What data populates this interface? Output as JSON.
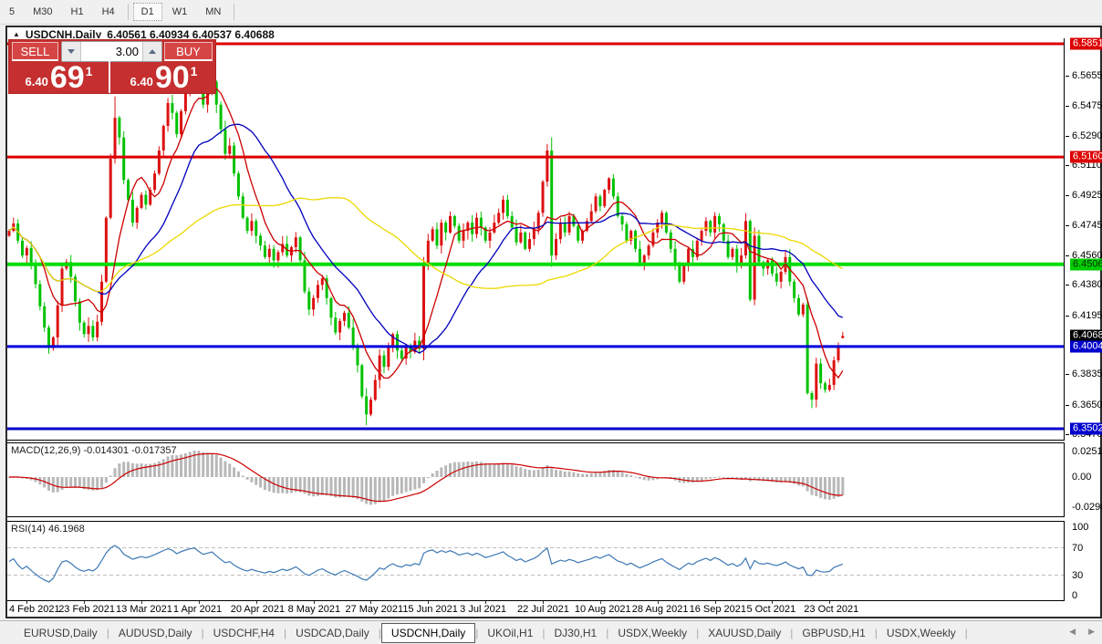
{
  "toolbar": {
    "timeframes": [
      "5",
      "M30",
      "H1",
      "H4",
      "D1",
      "W1",
      "MN"
    ],
    "active_timeframe": "D1"
  },
  "chart": {
    "symbol_title": "USDCNH,Daily",
    "ohlc_text": "6.40561 6.40934 6.40537 6.40688",
    "open": "6.40561",
    "high": "6.40934",
    "low": "6.40537",
    "close": "6.40688"
  },
  "trade_panel": {
    "sell_label": "SELL",
    "buy_label": "BUY",
    "volume": "3.00",
    "sell_price_small": "6.40",
    "sell_price_big": "69",
    "sell_price_sup": "1",
    "buy_price_small": "6.40",
    "buy_price_big": "90",
    "buy_price_sup": "1"
  },
  "indicators": {
    "macd_label": "MACD(12,26,9) -0.014301 -0.017357",
    "rsi_label": "RSI(14) 46.1968"
  },
  "price_axis": {
    "ticks": [
      "6.56550",
      "6.54750",
      "6.52900",
      "6.51100",
      "6.49250",
      "6.47450",
      "6.45600",
      "6.43800",
      "6.41950",
      "6.38350",
      "6.36500",
      "6.34700"
    ],
    "badges": [
      {
        "text": "6.58514",
        "bg": "#dd0000",
        "fg": "#ffffff"
      },
      {
        "text": "6.51605",
        "bg": "#dd0000",
        "fg": "#ffffff"
      },
      {
        "text": "6.45060",
        "bg": "#00cc00",
        "fg": "#072e07"
      },
      {
        "text": "6.40688",
        "bg": "#000000",
        "fg": "#ffffff"
      },
      {
        "text": "6.40042",
        "bg": "#0000cc",
        "fg": "#ffffff"
      },
      {
        "text": "6.35025",
        "bg": "#0000cc",
        "fg": "#ffffff"
      }
    ],
    "macd_ticks": [
      "0.025108",
      "0.00",
      "-0.02988"
    ],
    "rsi_ticks": [
      "100",
      "70",
      "30",
      "0"
    ]
  },
  "tabs": {
    "items": [
      "EURUSD,Daily",
      "AUDUSD,Daily",
      "USDCHF,H4",
      "USDCAD,Daily",
      "USDCNH,Daily",
      "UKOil,H1",
      "DJ30,H1",
      "USDX,Weekly",
      "XAUUSD,Daily",
      "GBPUSD,H1",
      "USDX,Weekly"
    ],
    "active_index": 4
  },
  "chart_data": {
    "type": "candlestick",
    "symbol": "USDCNH",
    "timeframe": "Daily",
    "title": "USDCNH,Daily",
    "ylim": [
      6.3435,
      6.58848
    ],
    "x_labels": [
      "4 Feb 2021",
      "23 Feb 2021",
      "13 Mar 2021",
      "1 Apr 2021",
      "20 Apr 2021",
      "8 May 2021",
      "27 May 2021",
      "15 Jun 2021",
      "3 Jul 2021",
      "22 Jul 2021",
      "10 Aug 2021",
      "28 Aug 2021",
      "16 Sep 2021",
      "5 Oct 2021",
      "23 Oct 2021"
    ],
    "closes": [
      6.471,
      6.4755,
      6.465,
      6.456,
      6.4605,
      6.45,
      6.4385,
      6.425,
      6.412,
      6.3995,
      6.406,
      6.4255,
      6.448,
      6.452,
      6.443,
      6.428,
      6.415,
      6.408,
      6.413,
      6.406,
      6.4155,
      6.44,
      6.479,
      6.515,
      6.54,
      6.528,
      6.502,
      6.49,
      6.476,
      6.485,
      6.493,
      6.487,
      6.496,
      6.506,
      6.52,
      6.535,
      6.549,
      6.543,
      6.53,
      6.544,
      6.555,
      6.564,
      6.571,
      6.559,
      6.548,
      6.555,
      6.562,
      6.548,
      6.533,
      6.518,
      6.523,
      6.506,
      6.492,
      6.479,
      6.471,
      6.477,
      6.468,
      6.462,
      6.455,
      6.46,
      6.453,
      6.458,
      6.463,
      6.456,
      6.461,
      6.467,
      6.453,
      6.434,
      6.423,
      6.43,
      6.438,
      6.442,
      6.43,
      6.418,
      6.409,
      6.416,
      6.421,
      6.412,
      6.401,
      6.389,
      6.37,
      6.359,
      6.368,
      6.38,
      6.395,
      6.388,
      6.4,
      6.408,
      6.398,
      6.393,
      6.401,
      6.397,
      6.404,
      6.399,
      6.45,
      6.465,
      6.472,
      6.462,
      6.476,
      6.47,
      6.48,
      6.474,
      6.465,
      6.471,
      6.476,
      6.469,
      6.479,
      6.473,
      6.465,
      6.47,
      6.476,
      6.482,
      6.49,
      6.48,
      6.473,
      6.464,
      6.47,
      6.46,
      6.466,
      6.472,
      6.482,
      6.501,
      6.52,
      6.456,
      6.466,
      6.476,
      6.47,
      6.48,
      6.474,
      6.465,
      6.471,
      6.477,
      6.483,
      6.492,
      6.486,
      6.496,
      6.503,
      6.492,
      6.48,
      6.475,
      6.465,
      6.471,
      6.46,
      6.45,
      6.456,
      6.462,
      6.47,
      6.476,
      6.482,
      6.47,
      6.46,
      6.45,
      6.44,
      6.45,
      6.46,
      6.455,
      6.465,
      6.471,
      6.477,
      6.47,
      6.48,
      6.475,
      6.465,
      6.455,
      6.46,
      6.45,
      6.456,
      6.477,
      6.429,
      6.468,
      6.452,
      6.448,
      6.453,
      6.445,
      6.44,
      6.446,
      6.455,
      6.44,
      6.43,
      6.42,
      6.426,
      6.372,
      6.368,
      6.39,
      6.378,
      6.374,
      6.377,
      6.392,
      6.4,
      6.40688
    ],
    "overrides": {
      "9": [
        6.412,
        6.4135,
        6.396,
        6.3995
      ],
      "24": [
        6.515,
        6.553,
        6.512,
        6.54
      ],
      "42": [
        6.564,
        6.578,
        6.56,
        6.571
      ],
      "81": [
        6.37,
        6.375,
        6.3525,
        6.359
      ],
      "94": [
        6.399,
        6.455,
        6.392,
        6.45
      ],
      "122": [
        6.501,
        6.524,
        6.498,
        6.52
      ],
      "123": [
        6.52,
        6.528,
        6.449,
        6.456
      ],
      "181": [
        6.426,
        6.43,
        6.371,
        6.372
      ],
      "189": [
        6.40561,
        6.40934,
        6.40537,
        6.40688
      ]
    },
    "colors": {
      "bull": "#dd1111",
      "bear": "#00c200",
      "ma_fast": "#cc0000",
      "ma_mid": "#0000bb",
      "ma_slow": "#ecd800",
      "macd_hist": "#b8b8b8",
      "macd_signal": "#cc0000",
      "rsi_line": "#3c78b4"
    },
    "moving_averages": [
      {
        "period": 8,
        "color": "#cc0000"
      },
      {
        "period": 21,
        "color": "#0000bb"
      },
      {
        "period": 55,
        "color": "#ecd800"
      }
    ],
    "hlines": [
      {
        "price": 6.58514,
        "color": "#dd0000",
        "width": 3
      },
      {
        "price": 6.51605,
        "color": "#dd0000",
        "width": 3
      },
      {
        "price": 6.4506,
        "color": "#00dd00",
        "width": 4
      },
      {
        "price": 6.40042,
        "color": "#0000dd",
        "width": 3
      },
      {
        "price": 6.35025,
        "color": "#0000cc",
        "width": 3
      }
    ],
    "current_price": 6.40688,
    "macd": {
      "params": [
        12,
        26,
        9
      ],
      "main": -0.014301,
      "signal": -0.017357,
      "axis_values": [
        0.025108,
        0,
        -0.02988
      ]
    },
    "rsi": {
      "period": 14,
      "value": 46.1968,
      "levels": [
        70,
        30
      ],
      "axis_values": [
        100,
        70,
        30,
        0
      ]
    }
  }
}
